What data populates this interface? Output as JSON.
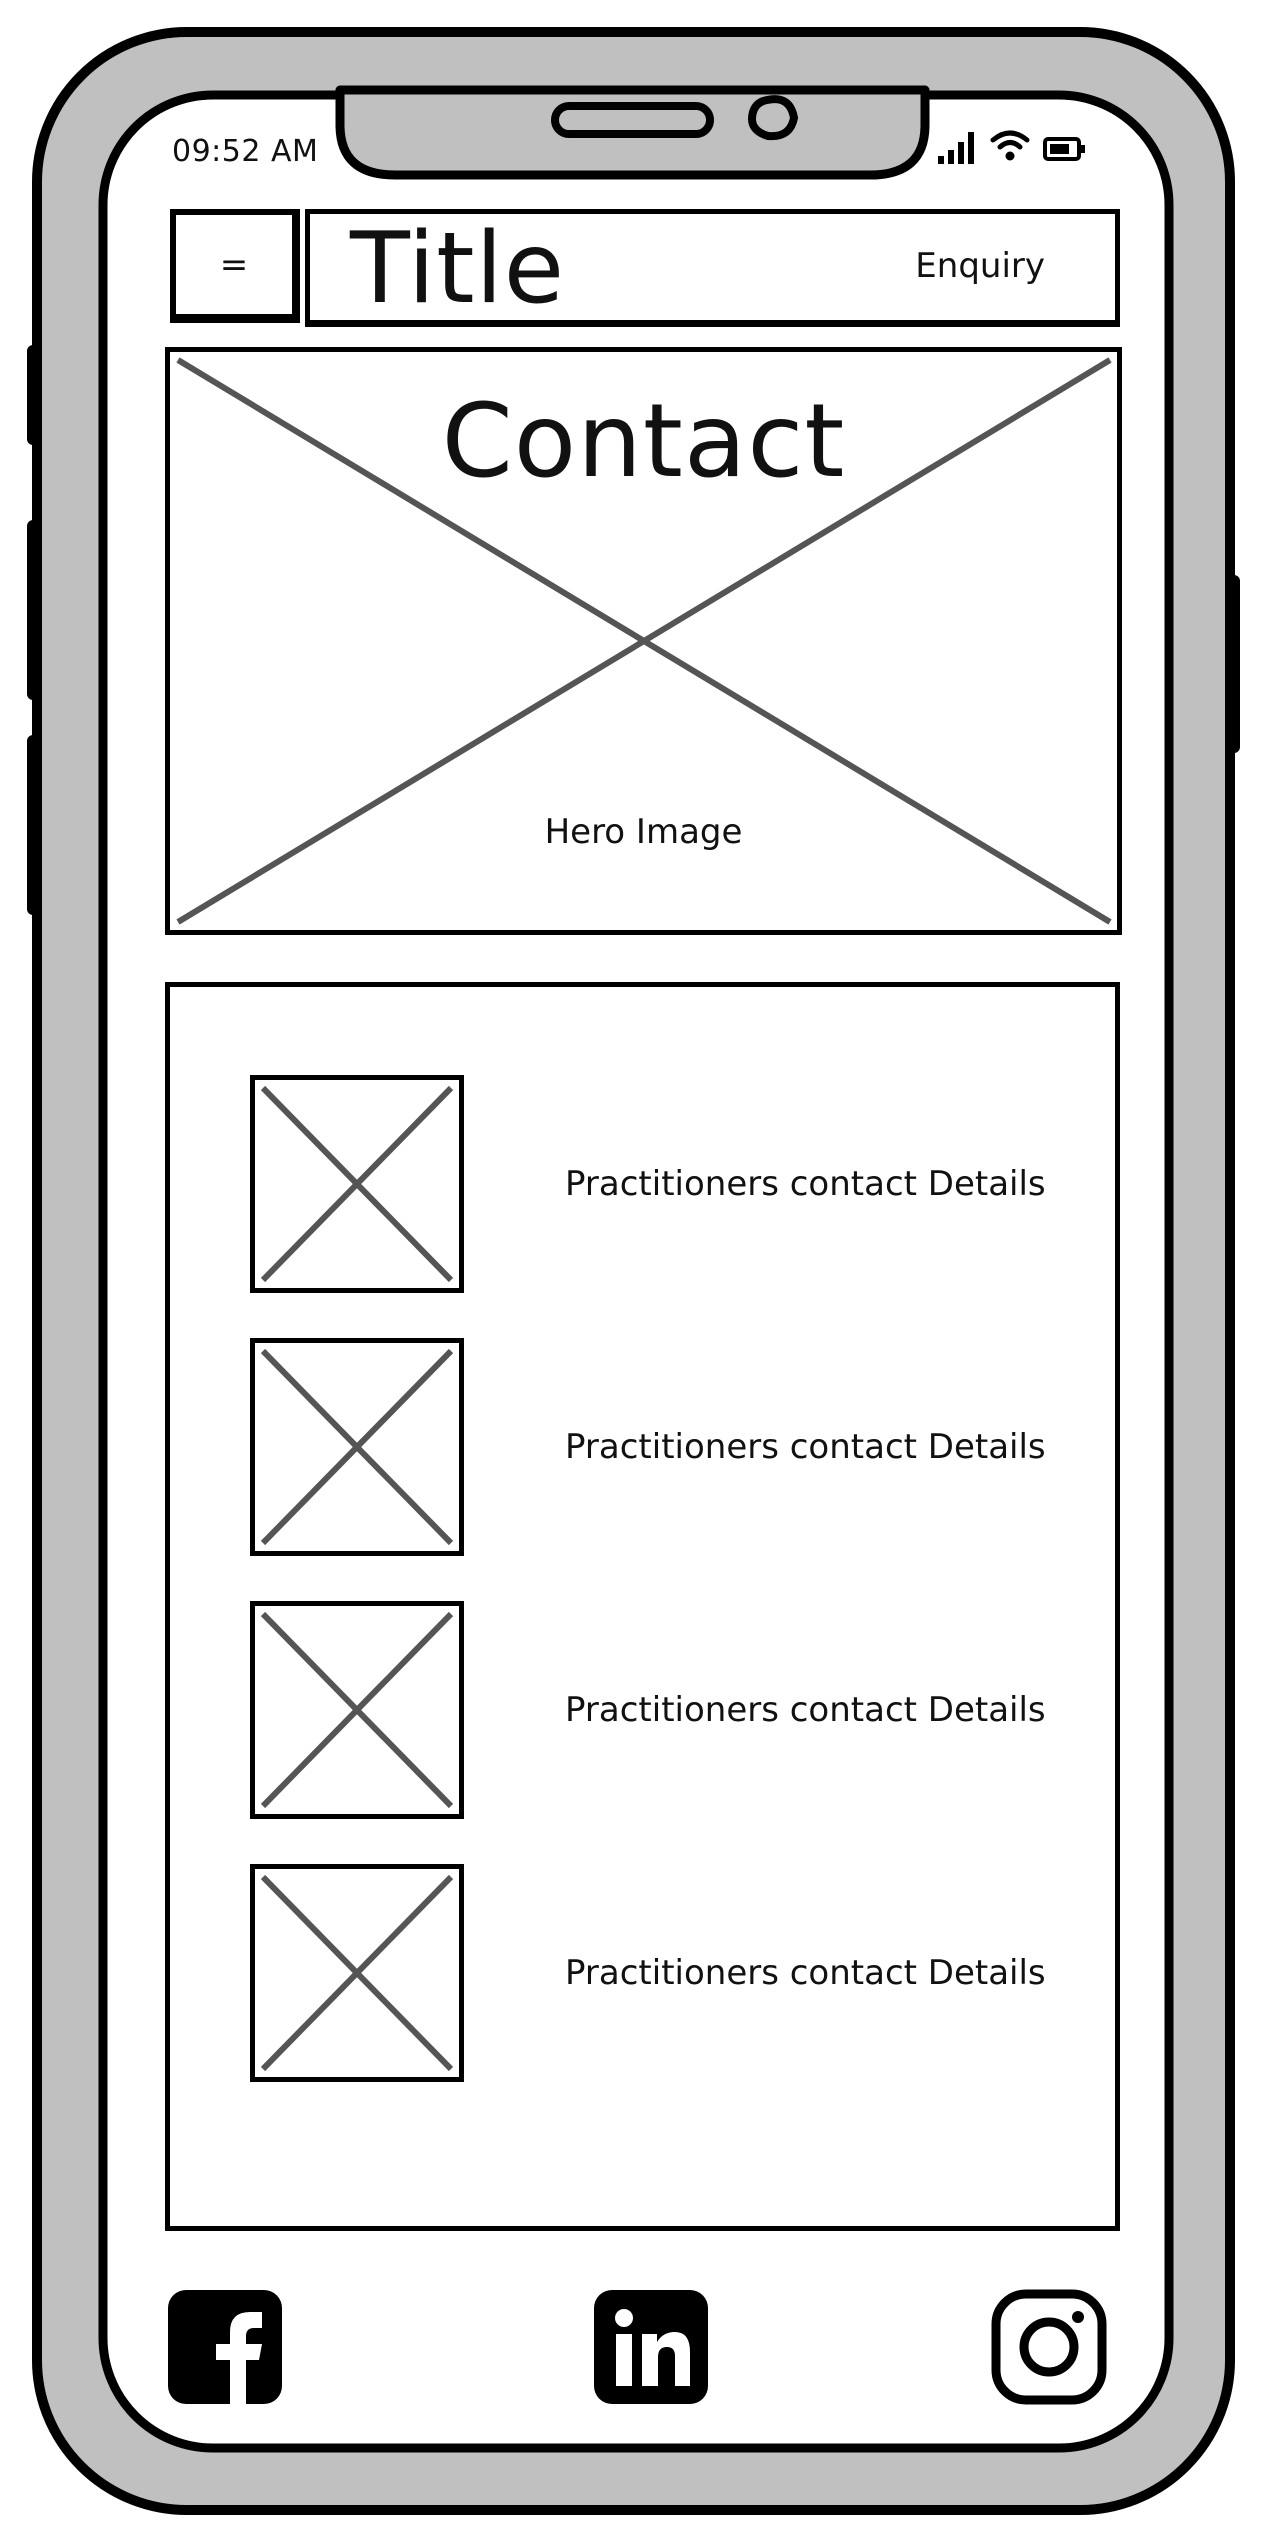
{
  "status_bar": {
    "time": "09:52 AM"
  },
  "header": {
    "menu_label": "=",
    "title": "Title",
    "enquiry_label": "Enquiry"
  },
  "hero": {
    "heading": "Contact",
    "caption": "Hero Image"
  },
  "contacts": [
    {
      "text": "Practitioners contact Details"
    },
    {
      "text": "Practitioners contact Details"
    },
    {
      "text": "Practitioners contact Details"
    },
    {
      "text": "Practitioners contact Details"
    }
  ],
  "footer": {
    "icons": [
      "facebook-icon",
      "linkedin-icon",
      "instagram-icon"
    ]
  },
  "colors": {
    "device_frame": "#c0c0c0",
    "outline": "#000000",
    "placeholder_cross": "#555555",
    "screen": "#ffffff"
  }
}
